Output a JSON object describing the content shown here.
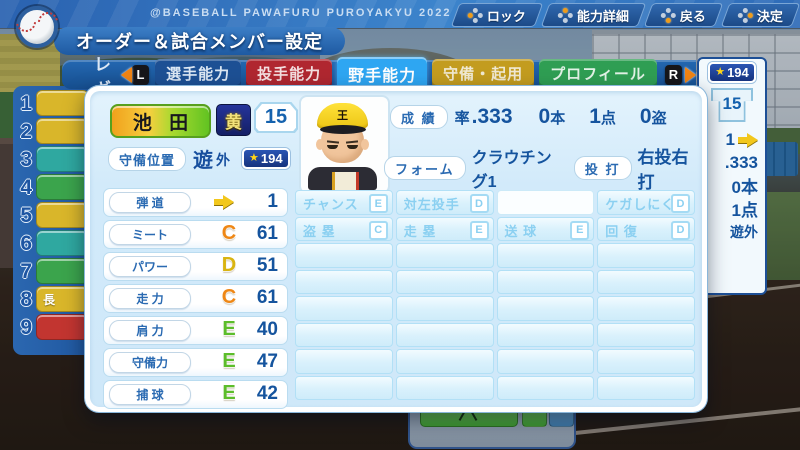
{
  "app": {
    "small_title": "@BASEBALL PAWAFURU PUROYAKYU 2022",
    "page_title": "オーダー＆試合メンバー設定"
  },
  "header_buttons": [
    {
      "label": "ロック",
      "pad": "left"
    },
    {
      "label": "能力詳細",
      "pad": "top"
    },
    {
      "label": "戻る",
      "pad": "bottom"
    },
    {
      "label": "決定",
      "pad": "right"
    }
  ],
  "tab_bar": {
    "left_fragment": "レギ",
    "l_button": "L",
    "r_button": "R",
    "tabs": [
      {
        "label": "選手能力",
        "color": "#1d5094",
        "text": "#dde8f4",
        "active": false
      },
      {
        "label": "投手能力",
        "color": "#b02730",
        "text": "#f4dfe0",
        "active": false
      },
      {
        "label": "野手能力",
        "color": "#2ea6f2",
        "text": "#ffffff",
        "active": true
      },
      {
        "label": "守備・起用",
        "color": "#c39c1f",
        "text": "#f0e9d2",
        "active": false
      },
      {
        "label": "プロフィール",
        "color": "#2f9e53",
        "text": "#e2f2e6",
        "active": false
      }
    ]
  },
  "roster_list": [
    {
      "num": "1",
      "color": "#d9b62a",
      "label": ""
    },
    {
      "num": "2",
      "color": "#d9b62a",
      "label": ""
    },
    {
      "num": "3",
      "color": "#2fa8a0",
      "label": ""
    },
    {
      "num": "4",
      "color": "#3ba44c",
      "label": ""
    },
    {
      "num": "5",
      "color": "#d9b62a",
      "label": ""
    },
    {
      "num": "6",
      "color": "#2fa8a0",
      "label": ""
    },
    {
      "num": "7",
      "color": "#3ba44c",
      "label": ""
    },
    {
      "num": "8",
      "color": "#d9b62a",
      "label": "長"
    },
    {
      "num": "9",
      "color": "#c23530",
      "label": ""
    }
  ],
  "side_summary": {
    "star": "★",
    "star_points": "194",
    "jersey_number": "15",
    "rows": [
      {
        "value": "1",
        "arrow": true,
        "small": false
      },
      {
        "value": ".333",
        "arrow": false,
        "small": false
      },
      {
        "value": "0本",
        "arrow": false,
        "small": false
      },
      {
        "value": "1点",
        "arrow": false,
        "small": false
      },
      {
        "value": "遊外",
        "arrow": false,
        "small": true
      }
    ]
  },
  "player": {
    "name": "池 田",
    "team_badge": "黄",
    "number": "15",
    "cap_kanji": "王",
    "position_label": "守備位置",
    "position_main": "遊",
    "position_sub": "外",
    "star": "★",
    "star_points": "194"
  },
  "batting_summary": {
    "label": "成 績",
    "avg_label": "率",
    "avg": ".333",
    "hr_num": "0",
    "hr_suffix": "本",
    "rbi_num": "1",
    "rbi_suffix": "点",
    "sb_num": "0",
    "sb_suffix": "盗"
  },
  "form_row": {
    "form_label": "フォーム",
    "form_value": "クラウチング1",
    "throw_bat_label": "投 打",
    "throw_bat_value": "右投右打"
  },
  "stats": [
    {
      "label": "弾 道",
      "grade": "arrow",
      "value": "1",
      "color": ""
    },
    {
      "label": "ミート",
      "grade": "C",
      "value": "61",
      "color": "#ef8715"
    },
    {
      "label": "パワー",
      "grade": "D",
      "value": "51",
      "color": "#d9b410"
    },
    {
      "label": "走 力",
      "grade": "C",
      "value": "61",
      "color": "#ef8715"
    },
    {
      "label": "肩 力",
      "grade": "E",
      "value": "40",
      "color": "#5cbd2a"
    },
    {
      "label": "守備力",
      "grade": "E",
      "value": "47",
      "color": "#5cbd2a"
    },
    {
      "label": "捕 球",
      "grade": "E",
      "value": "42",
      "color": "#5cbd2a"
    }
  ],
  "abilities": {
    "columns": 4,
    "empty_rows": 6,
    "rows": [
      [
        {
          "label": "チャンス",
          "grade": "E",
          "highlight": false
        },
        {
          "label": "対左投手",
          "grade": "D",
          "highlight": false
        },
        {
          "label": "",
          "grade": "",
          "highlight": true
        },
        {
          "label": "ケガしにくさ",
          "grade": "D",
          "highlight": false
        }
      ],
      [
        {
          "label": "盗 塁",
          "grade": "C",
          "highlight": false
        },
        {
          "label": "走 塁",
          "grade": "E",
          "highlight": false
        },
        {
          "label": "送 球",
          "grade": "E",
          "highlight": false
        },
        {
          "label": "回 復",
          "grade": "D",
          "highlight": false
        }
      ]
    ]
  }
}
